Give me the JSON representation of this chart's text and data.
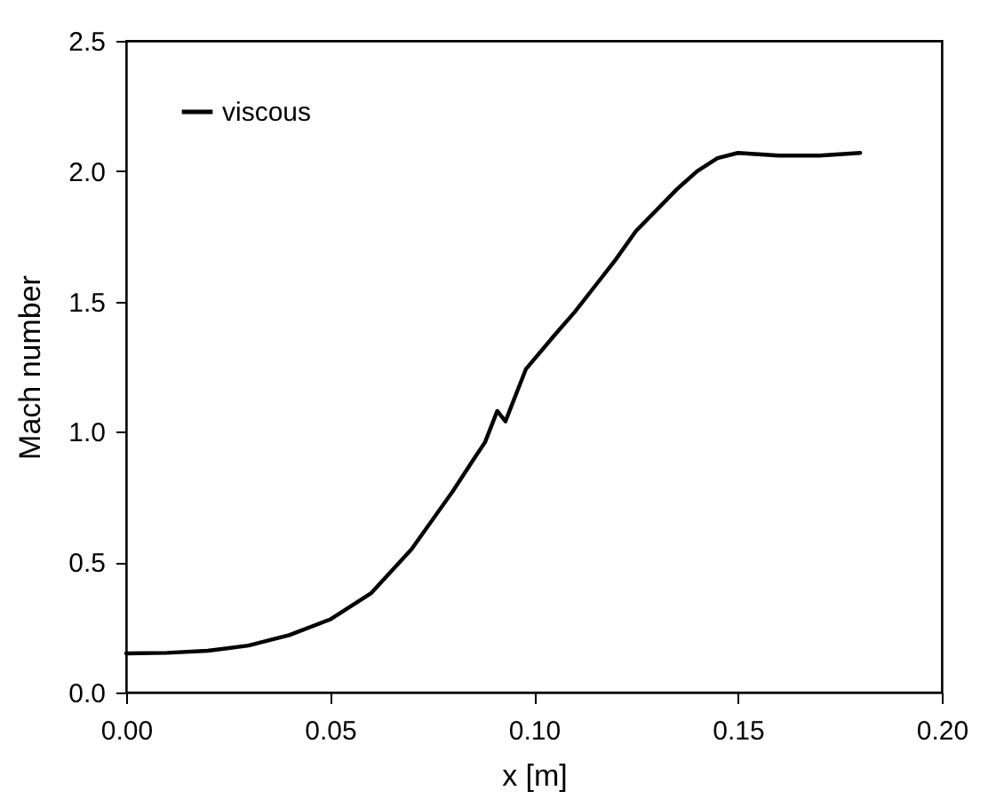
{
  "chart_data": {
    "type": "line",
    "xlabel": "x [m]",
    "ylabel": "Mach number",
    "x": [
      0,
      0.01,
      0.02,
      0.03,
      0.04,
      0.05,
      0.06,
      0.07,
      0.08,
      0.085,
      0.088,
      0.091,
      0.093,
      0.095,
      0.098,
      0.105,
      0.11,
      0.115,
      0.12,
      0.125,
      0.13,
      0.135,
      0.14,
      0.145,
      0.15,
      0.16,
      0.17,
      0.18
    ],
    "series": [
      {
        "name": "viscous",
        "color": "#000000",
        "values": [
          0.15,
          0.152,
          0.16,
          0.18,
          0.22,
          0.28,
          0.38,
          0.55,
          0.77,
          0.89,
          0.96,
          1.08,
          1.04,
          1.12,
          1.24,
          1.37,
          1.46,
          1.56,
          1.66,
          1.77,
          1.85,
          1.93,
          2.0,
          2.05,
          2.07,
          2.06,
          2.06,
          2.07
        ]
      }
    ],
    "xlim": [
      0,
      0.2
    ],
    "xticks": [
      {
        "value": 0,
        "label": "0.00"
      },
      {
        "value": 0.05,
        "label": "0.05"
      },
      {
        "value": 0.1,
        "label": "0.10"
      },
      {
        "value": 0.15,
        "label": "0.15"
      },
      {
        "value": 0.2,
        "label": "0.20"
      }
    ],
    "ylim": [
      0,
      2.5
    ],
    "yticks": [
      {
        "value": 0,
        "label": "0.0"
      },
      {
        "value": 0.5,
        "label": "0.5"
      },
      {
        "value": 1,
        "label": "1.0"
      },
      {
        "value": 1.5,
        "label": "1.5"
      },
      {
        "value": 2,
        "label": "2.0"
      },
      {
        "value": 2.5,
        "label": "2.5"
      }
    ],
    "grid": false,
    "legend": "top left",
    "marker": "none",
    "line_style": "solid"
  }
}
